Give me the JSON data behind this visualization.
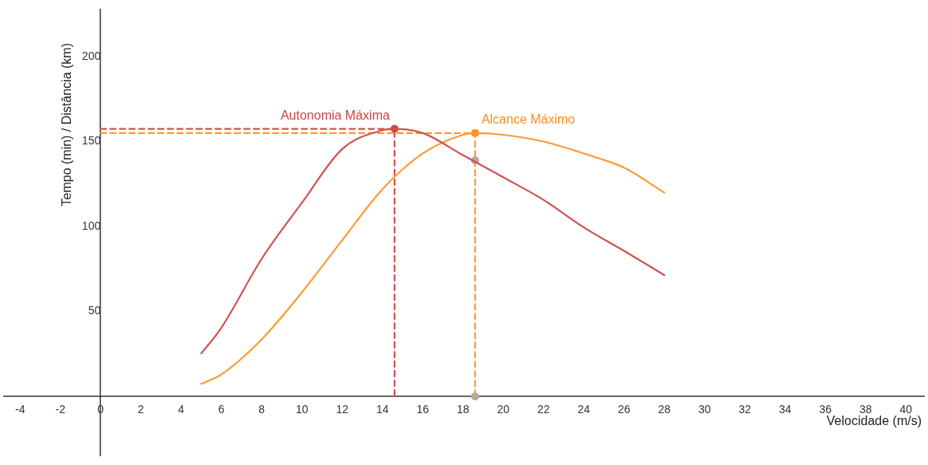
{
  "chart_data": {
    "type": "line",
    "xlabel": "Velocidade (m/s)",
    "ylabel": "Tempo (min) / Distância (km)",
    "xlim": [
      -4.8,
      40.9
    ],
    "ylim": [
      -35,
      228
    ],
    "xticks": [
      -4,
      -2,
      0,
      2,
      4,
      6,
      8,
      10,
      12,
      14,
      16,
      18,
      20,
      22,
      24,
      26,
      28,
      30,
      32,
      34,
      36,
      38,
      40
    ],
    "yticks": [
      50,
      100,
      150,
      200
    ],
    "grid": false,
    "legend": false,
    "series": [
      {
        "color": "#cf5352",
        "x": [
          5,
          6,
          8,
          10,
          12,
          14,
          14.6,
          16,
          18,
          20,
          22,
          24,
          26,
          28
        ],
        "values": [
          25.3,
          40.5,
          81,
          114,
          145.6,
          156.7,
          157.5,
          155,
          142,
          129,
          115.7,
          99.5,
          85.7,
          71.4
        ],
        "marker": "none",
        "line_style": "solid"
      },
      {
        "color": "#ff9a33",
        "x": [
          5,
          6,
          8,
          10,
          12,
          14,
          16,
          18,
          18.6,
          20,
          22,
          24,
          26,
          28
        ],
        "values": [
          7.4,
          13,
          33.6,
          61.3,
          92,
          122,
          143,
          154,
          155,
          154,
          150,
          143,
          134.6,
          120
        ],
        "marker": "none",
        "line_style": "solid"
      },
      {
        "color": "#cf5352",
        "x": [
          0,
          14.6,
          14.6
        ],
        "values": [
          157.5,
          157.5,
          0
        ],
        "marker": "none",
        "line_style": "dashed"
      },
      {
        "color": "#ff9a33",
        "x": [
          0,
          18.6,
          18.6
        ],
        "values": [
          155,
          155,
          0
        ],
        "marker": "none",
        "line_style": "dashed"
      },
      {
        "type": "scatter",
        "color": "#cf4444",
        "x": [
          14.6
        ],
        "values": [
          157.5
        ],
        "marker": "circle"
      },
      {
        "type": "scatter",
        "color": "#ff8c1a",
        "x": [
          18.6
        ],
        "values": [
          155
        ],
        "marker": "circle"
      },
      {
        "type": "scatter",
        "color": "#aaaaaa",
        "x": [
          18.6,
          18.6
        ],
        "values": [
          139,
          0
        ],
        "marker": "circle"
      }
    ],
    "annotations": [
      {
        "text": "Autonomia Máxima",
        "x": 14.6,
        "y": 157.5
      },
      {
        "text": "Alcance Máximo",
        "x": 18.6,
        "y": 155
      }
    ]
  }
}
